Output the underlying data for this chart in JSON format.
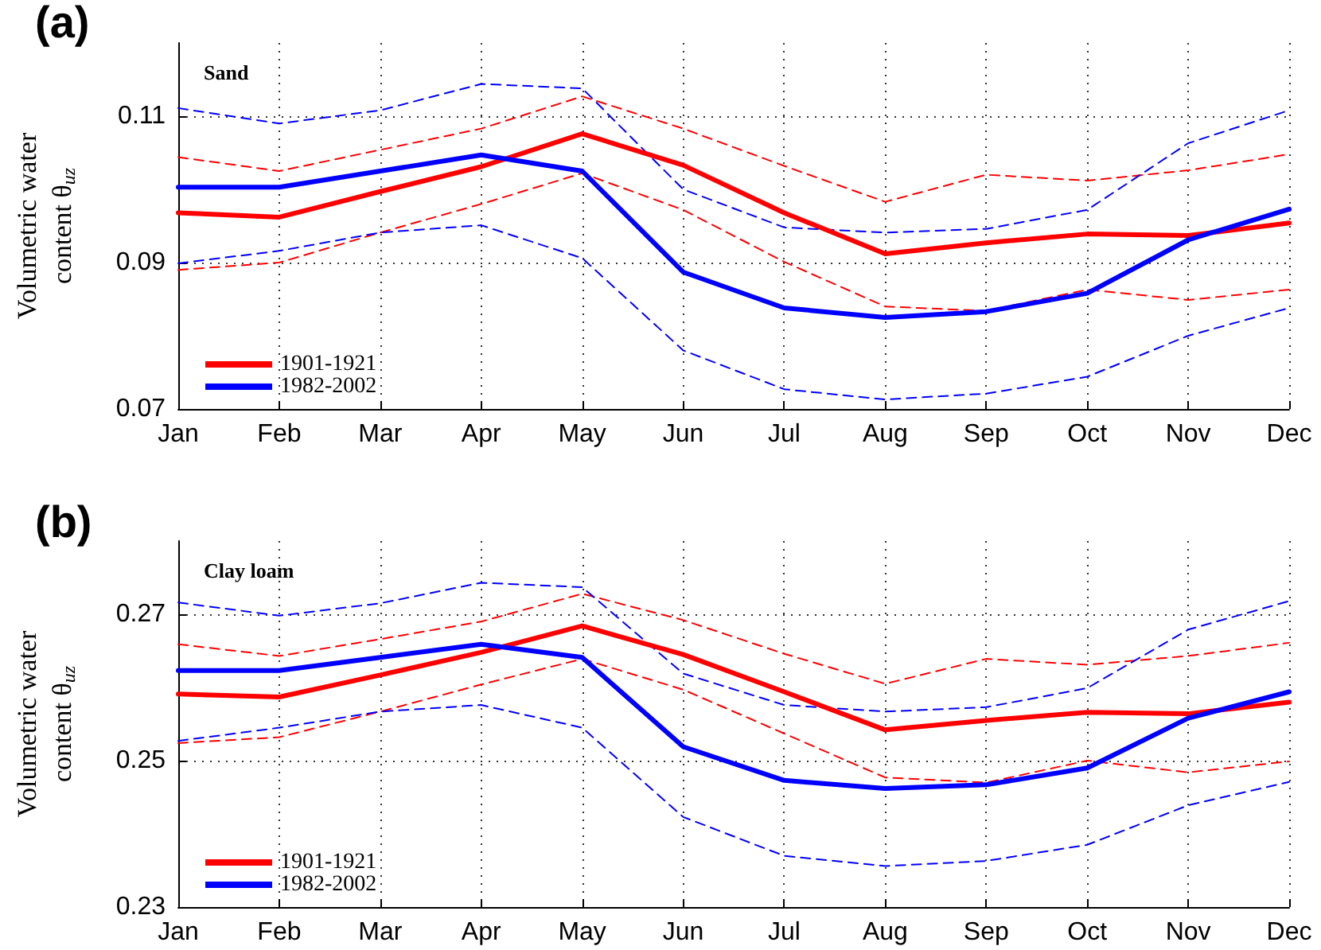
{
  "chart_data": [
    {
      "type": "line",
      "title": "(a)",
      "annotations": [
        "Sand"
      ],
      "ylabel": "Volumetric water content θ$_{uz}$",
      "categories": [
        "Jan",
        "Feb",
        "Mar",
        "Apr",
        "May",
        "Jun",
        "Jul",
        "Aug",
        "Sep",
        "Oct",
        "Nov",
        "Dec"
      ],
      "ylim": [
        0.07,
        0.12
      ],
      "yticks": [
        0.07,
        0.09,
        0.11
      ],
      "grid": true,
      "legend": "bottom left",
      "marker": "none",
      "series": [
        {
          "name": "1901-1921",
          "color": "#ff0000",
          "line_style": "solid",
          "values": [
            0.0968,
            0.0962,
            0.0997,
            0.1031,
            0.1076,
            0.1033,
            0.0968,
            0.0912,
            0.0927,
            0.0939,
            0.0937,
            0.0954
          ]
        },
        {
          "name": "1982-2002",
          "color": "#0000ff",
          "line_style": "solid",
          "values": [
            0.1003,
            0.1003,
            0.1025,
            0.1047,
            0.1025,
            0.0887,
            0.0838,
            0.0825,
            0.0833,
            0.0858,
            0.0931,
            0.0973
          ]
        },
        {
          "color": "#ff0000",
          "line_style": "dashed",
          "values": [
            0.1044,
            0.1025,
            0.1054,
            0.1083,
            0.1127,
            0.1083,
            0.1032,
            0.0983,
            0.102,
            0.1012,
            0.1026,
            0.1048
          ]
        },
        {
          "color": "#ff0000",
          "line_style": "dashed",
          "values": [
            0.089,
            0.09,
            0.0941,
            0.098,
            0.1022,
            0.0972,
            0.0901,
            0.084,
            0.0834,
            0.0863,
            0.0849,
            0.0863
          ]
        },
        {
          "color": "#0000ff",
          "line_style": "dashed",
          "values": [
            0.1111,
            0.109,
            0.1108,
            0.1144,
            0.1138,
            0.1,
            0.0948,
            0.0941,
            0.0946,
            0.0972,
            0.1063,
            0.1108
          ]
        },
        {
          "color": "#0000ff",
          "line_style": "dashed",
          "values": [
            0.0899,
            0.0916,
            0.0941,
            0.0951,
            0.0906,
            0.078,
            0.0727,
            0.0713,
            0.0721,
            0.0744,
            0.08,
            0.0838
          ]
        }
      ]
    },
    {
      "type": "line",
      "title": "(b)",
      "annotations": [
        "Clay loam"
      ],
      "ylabel": "Volumetric water content θ$_{uz}$",
      "categories": [
        "Jan",
        "Feb",
        "Mar",
        "Apr",
        "May",
        "Jun",
        "Jul",
        "Aug",
        "Sep",
        "Oct",
        "Nov",
        "Dec"
      ],
      "ylim": [
        0.23,
        0.28
      ],
      "yticks": [
        0.23,
        0.25,
        0.27
      ],
      "grid": true,
      "legend": "bottom left",
      "marker": "none",
      "series": [
        {
          "name": "1901-1921",
          "color": "#ff0000",
          "line_style": "solid",
          "values": [
            0.2591,
            0.2587,
            0.2617,
            0.2648,
            0.2684,
            0.2645,
            0.2594,
            0.2542,
            0.2555,
            0.2566,
            0.2564,
            0.258
          ]
        },
        {
          "name": "1982-2002",
          "color": "#0000ff",
          "line_style": "solid",
          "values": [
            0.2623,
            0.2623,
            0.2641,
            0.2659,
            0.2641,
            0.2519,
            0.2473,
            0.2462,
            0.2467,
            0.249,
            0.2558,
            0.2594
          ]
        },
        {
          "color": "#ff0000",
          "line_style": "dashed",
          "values": [
            0.2659,
            0.2643,
            0.2666,
            0.269,
            0.2728,
            0.2692,
            0.2646,
            0.2605,
            0.2639,
            0.2631,
            0.2643,
            0.2661
          ]
        },
        {
          "color": "#ff0000",
          "line_style": "dashed",
          "values": [
            0.2524,
            0.2532,
            0.2567,
            0.2604,
            0.2639,
            0.2597,
            0.2537,
            0.2477,
            0.247,
            0.25,
            0.2484,
            0.2499
          ]
        },
        {
          "color": "#0000ff",
          "line_style": "dashed",
          "values": [
            0.2716,
            0.2698,
            0.2715,
            0.2743,
            0.2737,
            0.2619,
            0.2576,
            0.2567,
            0.2573,
            0.2599,
            0.2679,
            0.2718
          ]
        },
        {
          "color": "#0000ff",
          "line_style": "dashed",
          "values": [
            0.2527,
            0.2545,
            0.2567,
            0.2576,
            0.2545,
            0.2423,
            0.237,
            0.2356,
            0.2363,
            0.2385,
            0.2439,
            0.2471
          ]
        }
      ]
    }
  ]
}
